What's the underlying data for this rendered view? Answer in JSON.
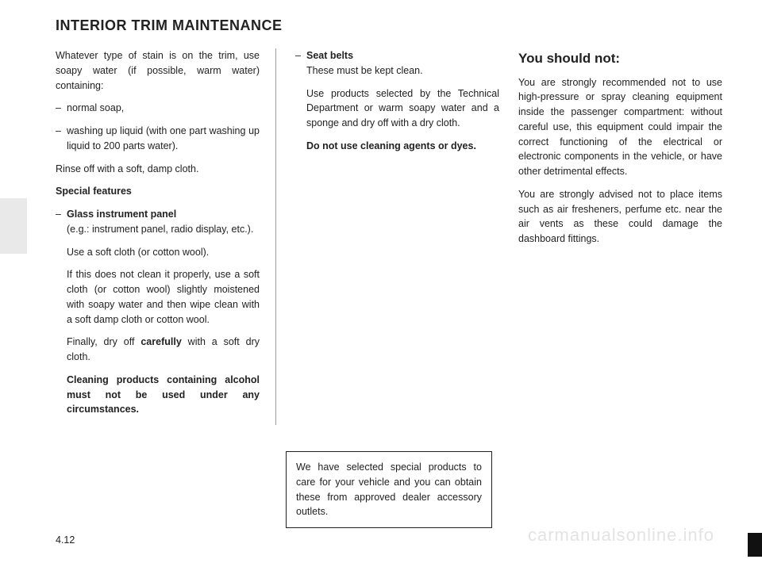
{
  "title": "INTERIOR TRIM MAINTENANCE",
  "col1": {
    "intro": "Whatever type of stain is on the trim, use soapy water (if possible, warm water) containing:",
    "bullet1": "normal soap,",
    "bullet2": "washing up liquid (with one part washing up liquid to 200 parts water).",
    "rinse": "Rinse off with a soft, damp cloth.",
    "special_heading": "Special features",
    "glass_label": "Glass instrument panel",
    "glass_eg": "(e.g.: instrument panel, radio display, etc.).",
    "glass_use": "Use a soft cloth (or cotton wool).",
    "glass_if": "If this does not clean it properly, use a soft cloth (or cotton wool) slightly moistened with soapy water and then wipe clean with a soft damp cloth or cotton wool.",
    "glass_fin_pre": "Finally, dry off ",
    "glass_fin_bold": "carefully",
    "glass_fin_post": " with a soft dry cloth.",
    "alcohol": "Cleaning products containing alcohol must not be used under any circumstances."
  },
  "col2": {
    "belts_label": "Seat belts",
    "belts_txt1": "These must be kept clean.",
    "belts_txt2": "Use products selected by the Technical Department or warm soapy water and a sponge and dry off with a dry cloth.",
    "belts_txt3": "Do not use cleaning agents or dyes."
  },
  "col3": {
    "heading": "You should not:",
    "p1": "You are strongly recommended not to use high-pressure or spray cleaning equipment inside the passenger compartment: without careful use, this equipment could impair the correct functioning of the electrical or electronic components in the vehicle, or have other detrimental effects.",
    "p2": "You are strongly advised not to place items such as air fresheners, perfume etc. near the air vents as these could damage the dashboard fittings."
  },
  "callout": "We have selected special products to care for your vehicle and you can obtain these from approved dealer accessory outlets.",
  "page_number": "4.12",
  "watermark": "carmanualsonline.info"
}
